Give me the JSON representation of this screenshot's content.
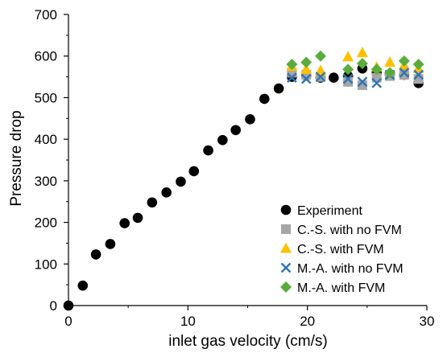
{
  "chart_data": {
    "type": "scatter",
    "title": "",
    "xlabel": "inlet gas velocity (cm/s)",
    "ylabel": "Pressure drop",
    "xlim": [
      0,
      30
    ],
    "ylim": [
      0,
      700
    ],
    "x_ticks": [
      0,
      10,
      20,
      30
    ],
    "y_ticks": [
      0,
      100,
      200,
      300,
      400,
      500,
      600,
      700
    ],
    "grid": false,
    "legend_position": "bottom-right",
    "series": [
      {
        "name": "Experiment",
        "marker": "circle",
        "color": "#000000",
        "points": [
          [
            0.0,
            0
          ],
          [
            1.2,
            48
          ],
          [
            2.3,
            123
          ],
          [
            3.5,
            148
          ],
          [
            4.7,
            198
          ],
          [
            5.8,
            211
          ],
          [
            7.0,
            248
          ],
          [
            8.2,
            272
          ],
          [
            9.4,
            298
          ],
          [
            10.5,
            323
          ],
          [
            11.7,
            373
          ],
          [
            12.9,
            398
          ],
          [
            14.0,
            422
          ],
          [
            15.2,
            448
          ],
          [
            16.4,
            497
          ],
          [
            17.6,
            522
          ],
          [
            18.7,
            550
          ],
          [
            19.9,
            553
          ],
          [
            21.1,
            548
          ],
          [
            22.2,
            548
          ],
          [
            23.4,
            552
          ],
          [
            24.6,
            570
          ],
          [
            25.8,
            560
          ],
          [
            26.9,
            556
          ],
          [
            28.1,
            555
          ],
          [
            29.3,
            535
          ]
        ]
      },
      {
        "name": "C.-S. with no FVM",
        "marker": "square",
        "color": "#a6a6a6",
        "points": [
          [
            18.7,
            560
          ],
          [
            19.9,
            555
          ],
          [
            21.1,
            550
          ],
          [
            23.4,
            538
          ],
          [
            24.6,
            530
          ],
          [
            25.8,
            548
          ],
          [
            26.9,
            552
          ],
          [
            28.1,
            555
          ],
          [
            29.3,
            545
          ]
        ]
      },
      {
        "name": "C.-S. with FVM",
        "marker": "triangle",
        "color": "#ffc000",
        "points": [
          [
            18.7,
            575
          ],
          [
            19.9,
            568
          ],
          [
            21.1,
            565
          ],
          [
            23.4,
            598
          ],
          [
            24.6,
            608
          ],
          [
            25.8,
            573
          ],
          [
            26.9,
            585
          ],
          [
            28.1,
            578
          ],
          [
            29.3,
            570
          ]
        ]
      },
      {
        "name": "M.-A. with no FVM",
        "marker": "x",
        "color": "#2e75b6",
        "points": [
          [
            18.7,
            548
          ],
          [
            19.9,
            545
          ],
          [
            21.1,
            550
          ],
          [
            23.4,
            545
          ],
          [
            24.6,
            538
          ],
          [
            25.8,
            535
          ],
          [
            26.9,
            555
          ],
          [
            28.1,
            560
          ],
          [
            29.3,
            555
          ]
        ]
      },
      {
        "name": "M.-A. with FVM",
        "marker": "diamond",
        "color": "#5aad3c",
        "points": [
          [
            18.7,
            580
          ],
          [
            19.9,
            585
          ],
          [
            21.1,
            600
          ],
          [
            23.4,
            568
          ],
          [
            24.6,
            582
          ],
          [
            25.8,
            568
          ],
          [
            26.9,
            560
          ],
          [
            28.1,
            588
          ],
          [
            29.3,
            580
          ]
        ]
      }
    ]
  }
}
